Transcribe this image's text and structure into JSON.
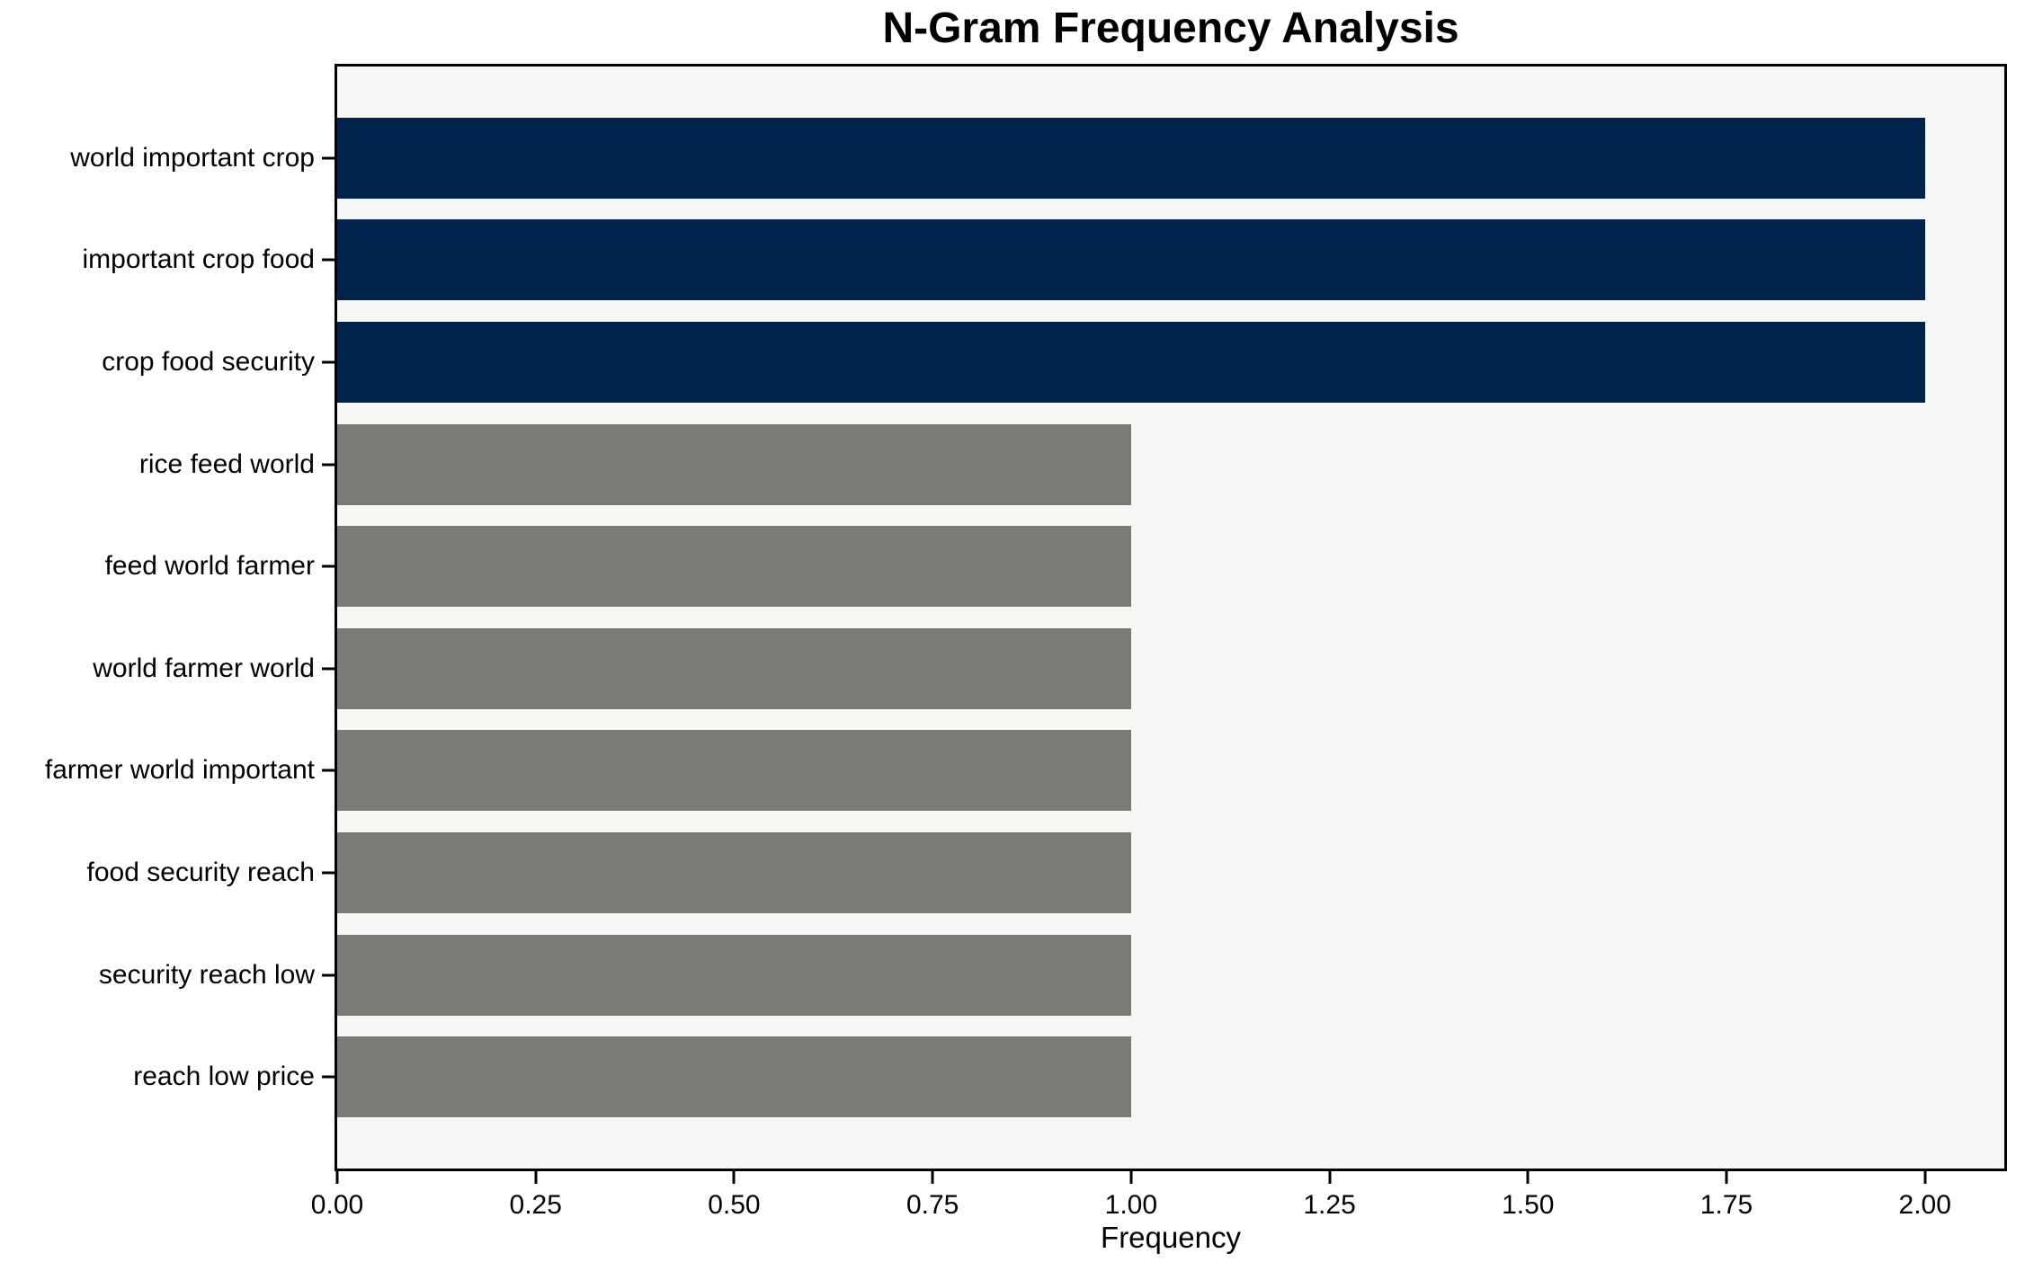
{
  "chart_data": {
    "type": "bar",
    "orientation": "horizontal",
    "title": "N-Gram Frequency Analysis",
    "xlabel": "Frequency",
    "ylabel": "",
    "categories": [
      "world important crop",
      "important crop food",
      "crop food security",
      "rice feed world",
      "feed world farmer",
      "world farmer world",
      "farmer world important",
      "food security reach",
      "security reach low",
      "reach low price"
    ],
    "values": [
      2,
      2,
      2,
      1,
      1,
      1,
      1,
      1,
      1,
      1
    ],
    "bar_colors": [
      "#01234e",
      "#01234e",
      "#01234e",
      "#7a7a77",
      "#7a7a77",
      "#7a7a77",
      "#7a7a77",
      "#7a7a77",
      "#7a7a77",
      "#7a7a77"
    ],
    "xlim": [
      0,
      2.1
    ],
    "xticks": [
      {
        "value": 0.0,
        "label": "0.00"
      },
      {
        "value": 0.25,
        "label": "0.25"
      },
      {
        "value": 0.5,
        "label": "0.50"
      },
      {
        "value": 0.75,
        "label": "0.75"
      },
      {
        "value": 1.0,
        "label": "1.00"
      },
      {
        "value": 1.25,
        "label": "1.25"
      },
      {
        "value": 1.5,
        "label": "1.50"
      },
      {
        "value": 1.75,
        "label": "1.75"
      },
      {
        "value": 2.0,
        "label": "2.00"
      }
    ],
    "grid": false,
    "legend": null,
    "colors": {
      "high_frequency": "#01234e",
      "low_frequency": "#7a7a77",
      "plot_background": "#f7f7f6",
      "figure_background": "#ffffff",
      "axis": "#000000"
    }
  }
}
